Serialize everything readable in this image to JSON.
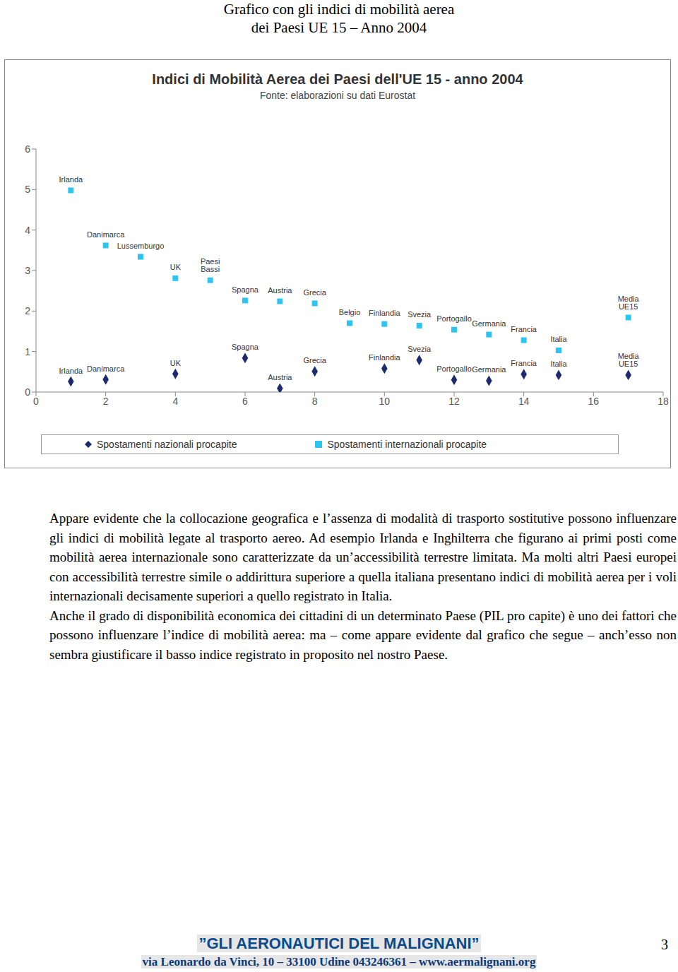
{
  "header": {
    "lines": [
      "Grafico con gli indici di mobilità aerea",
      "dei Paesi UE 15 – Anno 2004"
    ]
  },
  "chart_data": {
    "type": "scatter",
    "title": "Indici di Mobilità Aerea dei Paesi dell'UE 15 - anno 2004",
    "subtitle": "Fonte: elaborazioni su dati Eurostat",
    "xlim": [
      0,
      18
    ],
    "xticks": [
      0,
      2,
      4,
      6,
      8,
      10,
      12,
      14,
      16,
      18
    ],
    "ylim": [
      0,
      6
    ],
    "yticks": [
      0,
      1,
      2,
      3,
      4,
      5,
      6
    ],
    "grid": false,
    "legend": "bottom",
    "series": [
      {
        "name": "Spostamenti nazionali procapite",
        "color": "#1c2a6e",
        "marker": "diamond",
        "x": [
          1,
          2,
          4,
          6,
          7,
          8,
          10,
          11,
          12,
          13,
          14,
          15,
          17
        ],
        "values": [
          0.26,
          0.31,
          0.45,
          0.84,
          0.09,
          0.51,
          0.58,
          0.79,
          0.3,
          0.28,
          0.44,
          0.42,
          0.42
        ],
        "labels": [
          "Irlanda",
          "Danimarca",
          "UK",
          "Spagna",
          "Austria",
          "Grecia",
          "Finlandia",
          "Svezia",
          "Portogallo",
          "Germania",
          "Francia",
          "Italia",
          "Media UE15"
        ]
      },
      {
        "name": "Spostamenti internazionali procapite",
        "color": "#2ec4f2",
        "marker": "square",
        "x": [
          1,
          2,
          3,
          4,
          5,
          6,
          7,
          8,
          9,
          10,
          11,
          12,
          13,
          14,
          15,
          17
        ],
        "values": [
          4.98,
          3.62,
          3.34,
          2.81,
          2.76,
          2.26,
          2.24,
          2.19,
          1.7,
          1.68,
          1.64,
          1.54,
          1.42,
          1.28,
          1.03,
          1.84
        ],
        "labels": [
          "Irlanda",
          "Danimarca",
          "Lussemburgo",
          "UK",
          "Paesi Bassi",
          "Spagna",
          "Austria",
          "Grecia",
          "Belgio",
          "Finlandia",
          "Svezia",
          "Portogallo",
          "Germania",
          "Francia",
          "Italia",
          "Media UE15"
        ]
      }
    ]
  },
  "body": {
    "paragraphs": [
      "Appare evidente che la collocazione geografica e l’assenza di modalità di trasporto sostitutive possono influenzare gli indici di mobilità  legate al trasporto aereo. Ad esempio Irlanda e Inghilterra che figurano ai primi posti come mobilità aerea internazionale sono caratterizzate da un’accessibilità terrestre limitata. Ma molti altri Paesi europei con accessibilità terrestre simile o addirittura superiore a quella italiana presentano indici di mobilità aerea per i voli internazionali decisamente superiori a quello registrato in Italia.",
      "Anche il grado di disponibilità economica dei cittadini di un determinato Paese (PIL pro capite) è uno dei fattori che possono influenzare l’indice di mobilità aerea: ma – come appare evidente dal grafico che segue – anch’esso non sembra giustificare il basso indice registrato in proposito nel nostro Paese."
    ]
  },
  "footer": {
    "title": "”GLI AERONAUTICI DEL MALIGNANI”",
    "address": "via Leonardo da Vinci, 10 – 33100 Udine 043246361 – www.aermalignani.org",
    "page": "3"
  }
}
